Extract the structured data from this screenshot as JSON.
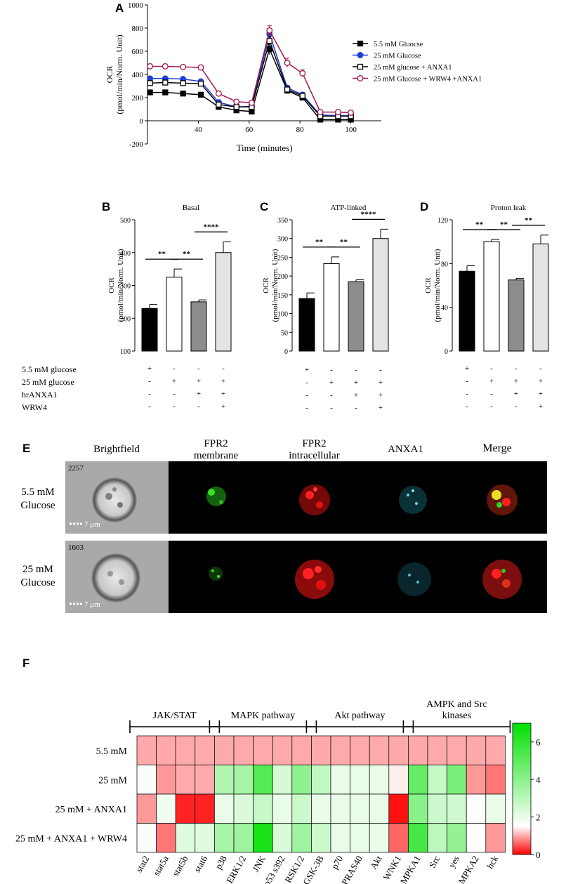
{
  "panels": {
    "a": "A",
    "b": "B",
    "c": "C",
    "d": "D",
    "e": "E",
    "f": "F"
  },
  "chart_data": [
    {
      "id": "A",
      "type": "line",
      "title": "",
      "xlabel": "Time (minutes)",
      "ylabel": "OCR (pmol/min/Norm. Unit)",
      "ylabel_line1": "OCR",
      "ylabel_line2": "(pmol/min/Norm. Unit)",
      "xlim": [
        20,
        112
      ],
      "ylim": [
        -200,
        1000
      ],
      "xticks": [
        40,
        60,
        80,
        100
      ],
      "yticks": [
        -200,
        0,
        200,
        400,
        600,
        800,
        1000
      ],
      "x": [
        21,
        27,
        34,
        41,
        48,
        55,
        61,
        68,
        75,
        81,
        88,
        95,
        100
      ],
      "series": [
        {
          "name": "5.5 mM Gluocse",
          "color": "#000000",
          "marker": "square-filled",
          "values": [
            245,
            245,
            235,
            225,
            120,
            90,
            80,
            620,
            260,
            200,
            10,
            10,
            10
          ],
          "err": [
            12,
            12,
            12,
            15,
            25,
            20,
            20,
            50,
            20,
            20,
            20,
            20,
            20
          ]
        },
        {
          "name": "25 mM Glucose",
          "color": "#1f3fd8",
          "marker": "circle-filled",
          "values": [
            365,
            365,
            360,
            340,
            160,
            120,
            125,
            750,
            285,
            225,
            50,
            45,
            45
          ],
          "err": [
            15,
            15,
            15,
            15,
            20,
            20,
            20,
            40,
            20,
            20,
            20,
            20,
            20
          ]
        },
        {
          "name": "25 mM glucose + ANXA1",
          "color": "#000000",
          "marker": "square-open",
          "values": [
            325,
            330,
            325,
            320,
            140,
            120,
            120,
            690,
            270,
            215,
            40,
            40,
            40
          ],
          "err": [
            15,
            15,
            15,
            15,
            20,
            20,
            20,
            40,
            20,
            20,
            20,
            20,
            20
          ]
        },
        {
          "name": "25 mM Glucose + WRW4 +ANXA1",
          "color": "#a3174a",
          "marker": "circle-open",
          "values": [
            470,
            470,
            465,
            460,
            235,
            165,
            155,
            780,
            500,
            410,
            75,
            75,
            70
          ],
          "err": [
            20,
            20,
            20,
            20,
            20,
            15,
            15,
            40,
            40,
            30,
            15,
            15,
            15
          ]
        }
      ]
    },
    {
      "id": "B",
      "type": "bar",
      "title": "Basal",
      "ylabel_line1": "OCR",
      "ylabel_line2": "(pmol/min/Norm. Unit)",
      "ylim": [
        100,
        500
      ],
      "yticks": [
        100,
        200,
        300,
        400,
        500
      ],
      "values": [
        230,
        325,
        250,
        400
      ],
      "err": [
        12,
        25,
        6,
        33
      ],
      "colors": [
        "#000000",
        "#ffffff",
        "#8c8c8c",
        "#e4e4e4"
      ],
      "sig": [
        {
          "from": 0,
          "to": 1,
          "label": "**"
        },
        {
          "from": 1,
          "to": 2,
          "label": "**"
        },
        {
          "from": 2,
          "to": 3,
          "label": "****"
        }
      ]
    },
    {
      "id": "C",
      "type": "bar",
      "title": "ATP-linked",
      "ylabel_line1": "OCR",
      "ylabel_line2": "(pmol/min/Norm. Unit)",
      "ylim": [
        0,
        350
      ],
      "yticks": [
        0,
        50,
        100,
        150,
        200,
        250,
        300,
        350
      ],
      "values": [
        140,
        233,
        185,
        300
      ],
      "err": [
        15,
        18,
        5,
        25
      ],
      "colors": [
        "#000000",
        "#ffffff",
        "#8c8c8c",
        "#e4e4e4"
      ],
      "sig": [
        {
          "from": 0,
          "to": 1,
          "label": "**"
        },
        {
          "from": 1,
          "to": 2,
          "label": "**"
        },
        {
          "from": 2,
          "to": 3,
          "label": "****"
        }
      ]
    },
    {
      "id": "D",
      "type": "bar",
      "title": "Proton leak",
      "ylabel_line1": "OCR",
      "ylabel_line2": "(pmol/min/Norm. Unit)",
      "ylim": [
        0,
        120
      ],
      "yticks": [
        0,
        40,
        80,
        120
      ],
      "values": [
        73,
        100,
        65,
        98
      ],
      "err": [
        5,
        2,
        1.5,
        8
      ],
      "colors": [
        "#000000",
        "#ffffff",
        "#8c8c8c",
        "#e4e4e4"
      ],
      "sig": [
        {
          "from": 0,
          "to": 1,
          "label": "**"
        },
        {
          "from": 1,
          "to": 2,
          "label": "**"
        },
        {
          "from": 2,
          "to": 3,
          "label": "**"
        }
      ]
    },
    {
      "id": "F",
      "type": "heatmap",
      "rows": [
        "5.5 mM",
        "25 mM",
        "25 mM + ANXA1",
        "25 mM + ANXA1 + WRW4"
      ],
      "columns": [
        "stat2",
        "stat5a",
        "stat5b",
        "stat6",
        "p38",
        "ERK1/2",
        "JNK",
        "p53 s392",
        "RSK1/2",
        "GSK-3B",
        "p70",
        "PRAS40",
        "Akt",
        "WNK1",
        "AMPKA1",
        "Src",
        "yes",
        "AMPKA2",
        "hck"
      ],
      "groups": [
        {
          "label": "JAK/STAT",
          "start": 0,
          "end": 3
        },
        {
          "label": "MAPK pathway",
          "start": 4,
          "end": 8
        },
        {
          "label": "Akt pathway",
          "start": 9,
          "end": 13
        },
        {
          "label": "AMPK and Src kinases",
          "start": 14,
          "end": 18
        }
      ],
      "values": [
        [
          1,
          1,
          1,
          1,
          1,
          1,
          1,
          1,
          1,
          1,
          1,
          1,
          1,
          1,
          1,
          1,
          1,
          1,
          1
        ],
        [
          1.6,
          0.9,
          1,
          1,
          3.2,
          3.4,
          5.2,
          2.4,
          3.9,
          2.8,
          2,
          2,
          2,
          1.4,
          4.8,
          2.7,
          4.4,
          0.9,
          0.7
        ],
        [
          0.9,
          1.8,
          0.2,
          0.2,
          2,
          2.3,
          2.7,
          2,
          2.6,
          2,
          2,
          2,
          2,
          0.1,
          4,
          2.6,
          2.5,
          1.5,
          2
        ],
        [
          1.6,
          0.7,
          2.2,
          2.2,
          3.4,
          3.6,
          6.5,
          2.3,
          3.6,
          2.6,
          2,
          2,
          2,
          0.6,
          5.5,
          2.9,
          3.8,
          1.5,
          0.9
        ]
      ],
      "colorbar": {
        "min": 0,
        "max": 7,
        "ticks": [
          0,
          2,
          4,
          6
        ],
        "colors": [
          "#ff0000",
          "#ffffff",
          "#00e000"
        ]
      }
    }
  ],
  "conditions": {
    "labels": [
      "5.5 mM  glucose",
      "25 mM glucose",
      "hrANXA1",
      "WRW4"
    ],
    "signs": [
      [
        "+",
        "-",
        "-",
        "-"
      ],
      [
        "-",
        "+",
        "+",
        "+"
      ],
      [
        "-",
        "-",
        "+",
        "+"
      ],
      [
        "-",
        "-",
        "-",
        "+"
      ]
    ]
  },
  "imaging": {
    "column_titles": {
      "brightfield": "Brightfield",
      "fpr2_mem_1": "FPR2",
      "fpr2_mem_2": "membrane",
      "fpr2_int_1": "FPR2",
      "fpr2_int_2": "intracellular",
      "anxa1": "ANXA1",
      "merge": "Merge"
    },
    "rows": [
      {
        "label_1": "5.5 mM",
        "label_2": "Glucose",
        "cell_id": "2257",
        "scale": "7 μm"
      },
      {
        "label_1": "25 mM",
        "label_2": "Glucose",
        "cell_id": "1603",
        "scale": "7 μm"
      }
    ]
  }
}
